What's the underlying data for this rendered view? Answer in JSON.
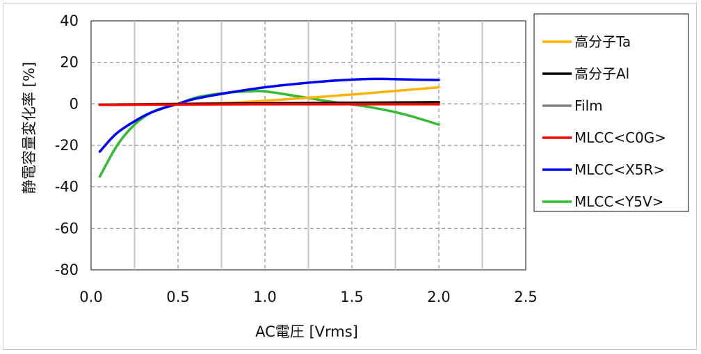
{
  "chart_data": {
    "type": "line",
    "xlabel": "AC電圧 [Vrms]",
    "ylabel": "静電容量変化率 [%]",
    "xlim": [
      0,
      2.5
    ],
    "ylim": [
      -80,
      40
    ],
    "xticks": [
      0.0,
      0.5,
      1.0,
      1.5,
      2.0,
      2.5
    ],
    "xtick_labels": [
      "0.0",
      "0.5",
      "1.0",
      "1.5",
      "2.0",
      "2.5"
    ],
    "yticks": [
      40,
      20,
      0,
      -20,
      -40,
      -60,
      -80
    ],
    "ytick_labels": [
      "40",
      "20",
      "0",
      "-20",
      "-40",
      "-60",
      "-80"
    ],
    "grid": "dashed",
    "legend_position": "right",
    "series": [
      {
        "name": "高分子Ta",
        "color": "#ffb300",
        "x": [
          0.05,
          0.5,
          0.8,
          1.0,
          1.5,
          2.0
        ],
        "y": [
          -0.5,
          -0.1,
          0.5,
          1.5,
          4.5,
          8
        ]
      },
      {
        "name": "高分子Al",
        "color": "#000000",
        "x": [
          0.05,
          0.5,
          1.0,
          1.5,
          2.0
        ],
        "y": [
          -0.5,
          -0.1,
          0.2,
          0.5,
          0.8
        ]
      },
      {
        "name": "Film",
        "color": "#808080",
        "x": [
          0.05,
          0.5,
          1.0,
          1.5,
          2.0
        ],
        "y": [
          -0.3,
          0,
          0.3,
          0.4,
          0.5
        ]
      },
      {
        "name": "MLCC<C0G>",
        "color": "#ff0000",
        "x": [
          0.05,
          0.5,
          1.0,
          1.5,
          2.0
        ],
        "y": [
          -0.5,
          -0.3,
          -0.2,
          -0.2,
          -0.2
        ]
      },
      {
        "name": "MLCC<X5R>",
        "color": "#0000ff",
        "x": [
          0.05,
          0.15,
          0.3,
          0.4,
          0.5,
          0.6,
          0.8,
          1.0,
          1.2,
          1.4,
          1.6,
          1.7,
          1.8,
          2.0
        ],
        "y": [
          -23,
          -14,
          -6,
          -2.5,
          0,
          2.5,
          5.5,
          8,
          9.8,
          11.2,
          12,
          12,
          11.8,
          11.5
        ]
      },
      {
        "name": "MLCC<Y5V>",
        "color": "#33bb33",
        "x": [
          0.05,
          0.15,
          0.25,
          0.35,
          0.45,
          0.5,
          0.6,
          0.7,
          0.8,
          0.9,
          1.0,
          1.2,
          1.4,
          1.6,
          1.8,
          2.0
        ],
        "y": [
          -35,
          -20,
          -10,
          -4,
          -1,
          0,
          3,
          4.5,
          5.5,
          6,
          6,
          3.5,
          0.8,
          -1.5,
          -5,
          -10
        ]
      }
    ]
  }
}
